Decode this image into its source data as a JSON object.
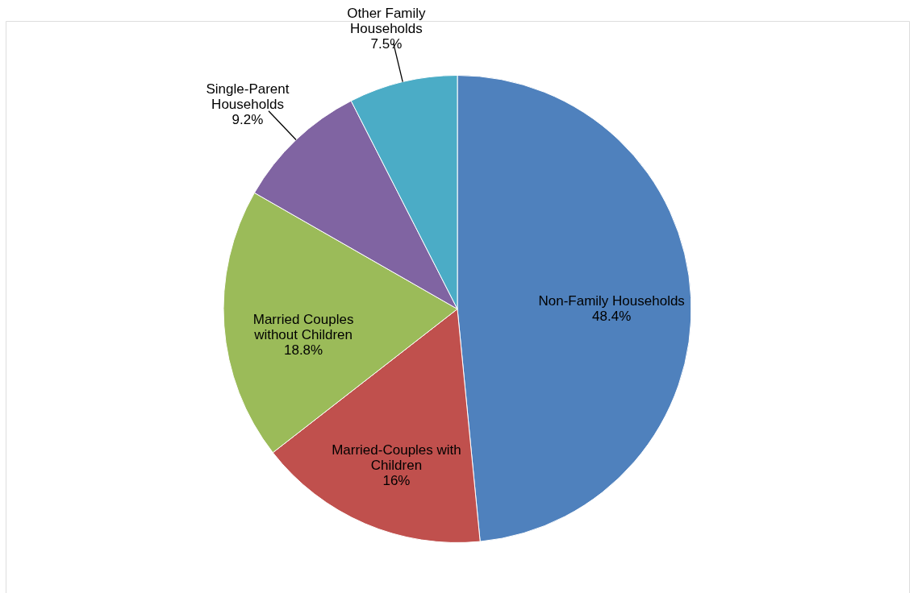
{
  "chart_data": {
    "type": "pie",
    "categories": [
      "Non-Family Households",
      "Married-Couples with Children",
      "Married Couples without Children",
      "Single-Parent Households",
      "Other Family Households"
    ],
    "values": [
      48.4,
      16,
      18.8,
      9.2,
      7.5
    ],
    "colors": [
      "#4f81bd",
      "#c0504d",
      "#9bbb59",
      "#8064a2",
      "#4bacc6"
    ],
    "value_labels": [
      "48.4%",
      "16%",
      "18.8%",
      "9.2%",
      "7.5%"
    ],
    "legend": false
  }
}
